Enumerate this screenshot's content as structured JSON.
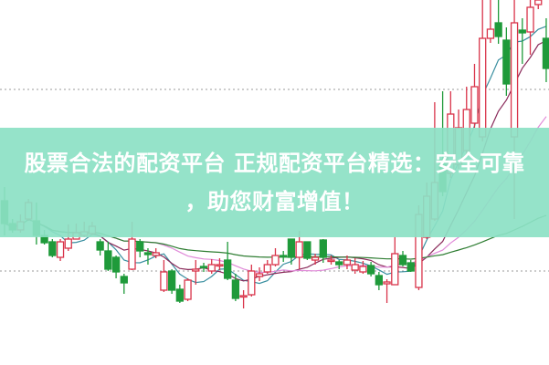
{
  "banner": {
    "line1": "股票合法的配资平台 正规配资平台精选：安全可靠",
    "line2": "，助您财富增值！"
  },
  "chart_data": {
    "type": "candlestick",
    "title": "",
    "xlabel": "",
    "ylabel": "",
    "ylim": [
      0,
      40
    ],
    "grid": false,
    "reference_lines": [
      30.2,
      10.3
    ],
    "up_color": "#d9344a",
    "down_color": "#1f9a3a",
    "moving_averages": [
      {
        "period": 5,
        "color": "#3a8fa0"
      },
      {
        "period": 10,
        "color": "#8a2a5a"
      },
      {
        "period": 20,
        "color": "#e08ad8"
      },
      {
        "period": 60,
        "color": "#2e7d32"
      }
    ],
    "ohlc": [
      [
        18.0,
        15.5,
        19.5,
        14.2
      ],
      [
        15.5,
        14.8,
        16.0,
        14.5
      ],
      [
        14.8,
        15.7,
        16.5,
        14.5
      ],
      [
        16.0,
        17.8,
        18.2,
        15.8
      ],
      [
        15.8,
        14.2,
        17.8,
        13.2
      ],
      [
        14.2,
        13.4,
        14.8,
        13.2
      ],
      [
        13.5,
        12.0,
        13.8,
        11.8
      ],
      [
        11.8,
        13.5,
        13.8,
        11.4
      ],
      [
        12.8,
        13.8,
        15.4,
        12.5
      ],
      [
        13.8,
        14.5,
        15.5,
        13.8
      ],
      [
        14.2,
        14.6,
        15.7,
        14.0
      ],
      [
        14.4,
        15.2,
        15.7,
        14.2
      ],
      [
        13.5,
        12.6,
        13.8,
        12.0
      ],
      [
        12.5,
        10.5,
        13.5,
        10.3
      ],
      [
        11.8,
        10.2,
        12.0,
        9.5
      ],
      [
        9.7,
        9.0,
        10.0,
        7.8
      ],
      [
        10.5,
        13.8,
        15.7,
        10.4
      ],
      [
        13.5,
        12.5,
        13.8,
        11.8
      ],
      [
        12.3,
        12.1,
        12.8,
        11.0
      ],
      [
        12.0,
        12.3,
        12.8,
        11.7
      ],
      [
        8.2,
        10.2,
        11.5,
        8.0
      ],
      [
        10.3,
        8.2,
        10.5,
        7.8
      ],
      [
        8.3,
        7.0,
        8.8,
        6.8
      ],
      [
        7.2,
        9.3,
        9.5,
        7.0
      ],
      [
        10.3,
        10.5,
        11.5,
        8.8
      ],
      [
        10.8,
        10.7,
        11.2,
        10.2
      ],
      [
        10.3,
        11.0,
        11.6,
        10.0
      ],
      [
        10.9,
        11.0,
        11.7,
        10.4
      ],
      [
        11.5,
        9.5,
        13.5,
        9.3
      ],
      [
        9.3,
        7.3,
        10.0,
        7.0
      ],
      [
        7.5,
        7.6,
        8.2,
        6.2
      ],
      [
        7.7,
        10.3,
        11.0,
        7.5
      ],
      [
        9.7,
        10.0,
        10.7,
        9.2
      ],
      [
        10.2,
        11.0,
        11.5,
        10.0
      ],
      [
        11.0,
        12.0,
        12.8,
        10.8
      ],
      [
        12.0,
        11.9,
        12.5,
        11.3
      ],
      [
        13.8,
        11.8,
        13.8,
        11.0
      ],
      [
        11.8,
        13.5,
        14.7,
        10.5
      ],
      [
        13.5,
        11.7,
        13.5,
        11.5
      ],
      [
        11.5,
        11.8,
        12.2,
        11.0
      ],
      [
        13.7,
        11.8,
        13.8,
        11.2
      ],
      [
        11.4,
        11.5,
        12.0,
        11.0
      ],
      [
        11.3,
        11.0,
        11.5,
        10.5
      ],
      [
        11.0,
        11.5,
        12.0,
        10.5
      ],
      [
        10.4,
        11.0,
        11.7,
        10.0
      ],
      [
        10.2,
        10.8,
        11.4,
        10.0
      ],
      [
        10.9,
        10.0,
        11.3,
        9.7
      ],
      [
        9.8,
        8.8,
        10.2,
        8.2
      ],
      [
        8.9,
        9.1,
        9.4,
        6.8
      ],
      [
        8.8,
        12.2,
        14.0,
        8.8
      ],
      [
        12.0,
        11.0,
        12.5,
        10.8
      ],
      [
        11.2,
        10.3,
        11.5,
        10.2
      ],
      [
        8.5,
        16.5,
        17.5,
        8.2
      ],
      [
        14.0,
        18.5,
        20.0,
        13.8
      ],
      [
        16.0,
        20.0,
        28.8,
        15.8
      ],
      [
        22.5,
        19.0,
        30.0,
        18.5
      ],
      [
        21.0,
        27.5,
        30.0,
        20.5
      ],
      [
        22.0,
        26.0,
        28.0,
        21.5
      ],
      [
        23.5,
        28.0,
        30.5,
        23.0
      ],
      [
        26.5,
        30.5,
        33.0,
        26.0
      ],
      [
        25.0,
        35.8,
        40.0,
        24.5
      ],
      [
        35.8,
        36.8,
        40.0,
        35.3
      ],
      [
        37.5,
        36.0,
        40.0,
        35.2
      ],
      [
        35.6,
        30.8,
        37.0,
        29.5
      ],
      [
        25.0,
        37.5,
        40.0,
        16.0
      ],
      [
        36.7,
        36.4,
        38.0,
        33.0
      ],
      [
        36.5,
        39.2,
        40.0,
        34.0
      ],
      [
        39.5,
        40.0,
        40.0,
        39.0
      ],
      [
        35.8,
        32.5,
        38.0,
        31.0
      ]
    ]
  }
}
